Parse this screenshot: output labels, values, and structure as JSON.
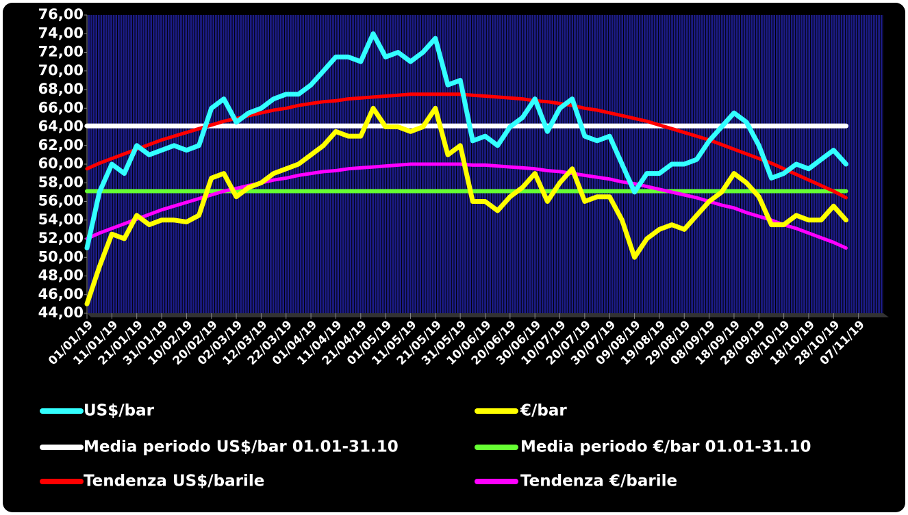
{
  "chart_data": {
    "type": "line",
    "x": [
      "01/01/19",
      "06/01/19",
      "11/01/19",
      "16/01/19",
      "21/01/19",
      "26/01/19",
      "31/01/19",
      "05/02/19",
      "10/02/19",
      "15/02/19",
      "20/02/19",
      "25/02/19",
      "02/03/19",
      "07/03/19",
      "12/03/19",
      "17/03/19",
      "22/03/19",
      "27/03/19",
      "01/04/19",
      "06/04/19",
      "11/04/19",
      "16/04/19",
      "21/04/19",
      "26/04/19",
      "01/05/19",
      "06/05/19",
      "11/05/19",
      "16/05/19",
      "21/05/19",
      "26/05/19",
      "31/05/19",
      "05/06/19",
      "10/06/19",
      "15/06/19",
      "20/06/19",
      "25/06/19",
      "30/06/19",
      "05/07/19",
      "10/07/19",
      "15/07/19",
      "20/07/19",
      "25/07/19",
      "30/07/19",
      "04/08/19",
      "09/08/19",
      "14/08/19",
      "19/08/19",
      "24/08/19",
      "29/08/19",
      "03/09/19",
      "08/09/19",
      "13/09/19",
      "18/09/19",
      "23/09/19",
      "28/09/19",
      "03/10/19",
      "08/10/19",
      "13/10/19",
      "18/10/19",
      "23/10/19",
      "28/10/19",
      "02/11/19"
    ],
    "series": [
      {
        "name": "US$/bar",
        "color": "#33ffff",
        "values": [
          51,
          57,
          60,
          59,
          62,
          61,
          61.5,
          62,
          61.5,
          62,
          66,
          67,
          64.5,
          65.5,
          66,
          67,
          67.5,
          67.5,
          68.5,
          70,
          71.5,
          71.5,
          71,
          74,
          71.5,
          72,
          71,
          72,
          73.5,
          68.5,
          69,
          62.5,
          63,
          62,
          64,
          65,
          67,
          63.5,
          66,
          67,
          63,
          62.5,
          63,
          60,
          57,
          59,
          59,
          60,
          60,
          60.5,
          62.5,
          64,
          65.5,
          64.5,
          62,
          58.5,
          59,
          60,
          59.5,
          60.5,
          61.5,
          60
        ]
      },
      {
        "name": "€/bar",
        "color": "#ffff00",
        "values": [
          45,
          49,
          52.5,
          52,
          54.5,
          53.5,
          54,
          54,
          53.8,
          54.5,
          58.5,
          59,
          56.5,
          57.5,
          58,
          59,
          59.5,
          60,
          61,
          62,
          63.5,
          63,
          63,
          66,
          64,
          64,
          63.5,
          64,
          66,
          61,
          62,
          56,
          56,
          55,
          56.5,
          57.5,
          59,
          56,
          58,
          59.5,
          56,
          56.5,
          56.5,
          54,
          50,
          52,
          53,
          53.5,
          53,
          54.5,
          56,
          57,
          59,
          58,
          56.5,
          53.5,
          53.5,
          54.5,
          54,
          54,
          55.5,
          54
        ]
      },
      {
        "name": "Media periodo US$/bar 01.01-31.10",
        "color": "#ffffff",
        "values": [
          64.1,
          64.1,
          64.1,
          64.1,
          64.1,
          64.1,
          64.1,
          64.1,
          64.1,
          64.1,
          64.1,
          64.1,
          64.1,
          64.1,
          64.1,
          64.1,
          64.1,
          64.1,
          64.1,
          64.1,
          64.1,
          64.1,
          64.1,
          64.1,
          64.1,
          64.1,
          64.1,
          64.1,
          64.1,
          64.1,
          64.1,
          64.1,
          64.1,
          64.1,
          64.1,
          64.1,
          64.1,
          64.1,
          64.1,
          64.1,
          64.1,
          64.1,
          64.1,
          64.1,
          64.1,
          64.1,
          64.1,
          64.1,
          64.1,
          64.1,
          64.1,
          64.1,
          64.1,
          64.1,
          64.1,
          64.1,
          64.1,
          64.1,
          64.1,
          64.1,
          64.1,
          64.1
        ]
      },
      {
        "name": "Media periodo €/bar 01.01-31.10",
        "color": "#66ff33",
        "values": [
          57.1,
          57.1,
          57.1,
          57.1,
          57.1,
          57.1,
          57.1,
          57.1,
          57.1,
          57.1,
          57.1,
          57.1,
          57.1,
          57.1,
          57.1,
          57.1,
          57.1,
          57.1,
          57.1,
          57.1,
          57.1,
          57.1,
          57.1,
          57.1,
          57.1,
          57.1,
          57.1,
          57.1,
          57.1,
          57.1,
          57.1,
          57.1,
          57.1,
          57.1,
          57.1,
          57.1,
          57.1,
          57.1,
          57.1,
          57.1,
          57.1,
          57.1,
          57.1,
          57.1,
          57.1,
          57.1,
          57.1,
          57.1,
          57.1,
          57.1,
          57.1,
          57.1,
          57.1,
          57.1,
          57.1,
          57.1,
          57.1,
          57.1,
          57.1,
          57.1,
          57.1,
          57.1
        ]
      },
      {
        "name": "Tendenza US$/barile",
        "color": "#ff0000",
        "values": [
          59.5,
          60.1,
          60.6,
          61.1,
          61.6,
          62.1,
          62.6,
          63.0,
          63.4,
          63.8,
          64.2,
          64.6,
          64.9,
          65.2,
          65.5,
          65.8,
          66.0,
          66.3,
          66.5,
          66.7,
          66.8,
          67.0,
          67.1,
          67.2,
          67.3,
          67.4,
          67.5,
          67.5,
          67.5,
          67.5,
          67.5,
          67.4,
          67.3,
          67.2,
          67.1,
          67.0,
          66.8,
          66.7,
          66.5,
          66.3,
          66.0,
          65.8,
          65.5,
          65.2,
          64.9,
          64.6,
          64.2,
          63.8,
          63.4,
          63.0,
          62.6,
          62.1,
          61.6,
          61.1,
          60.6,
          60.1,
          59.5,
          58.9,
          58.3,
          57.7,
          57.1,
          56.4
        ]
      },
      {
        "name": "Tendenza €/barile",
        "color": "#ff00ff",
        "values": [
          52.0,
          52.6,
          53.1,
          53.6,
          54.1,
          54.6,
          55.1,
          55.5,
          55.9,
          56.3,
          56.7,
          57.1,
          57.4,
          57.7,
          58.0,
          58.3,
          58.5,
          58.8,
          59.0,
          59.2,
          59.3,
          59.5,
          59.6,
          59.7,
          59.8,
          59.9,
          60.0,
          60.0,
          60.0,
          60.0,
          60.0,
          59.9,
          59.9,
          59.8,
          59.7,
          59.6,
          59.5,
          59.3,
          59.2,
          59.0,
          58.8,
          58.6,
          58.4,
          58.1,
          57.9,
          57.6,
          57.3,
          57.0,
          56.7,
          56.4,
          56.0,
          55.6,
          55.3,
          54.8,
          54.4,
          54.0,
          53.5,
          53.1,
          52.6,
          52.1,
          51.6,
          51.0
        ]
      }
    ],
    "xlim": [
      "01/01/19",
      "17/11/19"
    ],
    "xticks": [
      "01/01/19",
      "11/01/19",
      "21/01/19",
      "31/01/19",
      "10/02/19",
      "20/02/19",
      "02/03/19",
      "12/03/19",
      "22/03/19",
      "01/04/19",
      "11/04/19",
      "21/04/19",
      "01/05/19",
      "11/05/19",
      "21/05/19",
      "31/05/19",
      "10/06/19",
      "20/06/19",
      "30/06/19",
      "10/07/19",
      "20/07/19",
      "30/07/19",
      "09/08/19",
      "19/08/19",
      "29/08/19",
      "08/09/19",
      "18/09/19",
      "28/09/19",
      "08/10/19",
      "18/10/19",
      "28/10/19",
      "07/11/19"
    ],
    "ylim": [
      44,
      76
    ],
    "yticks": [
      {
        "value": 44,
        "label": "44,00"
      },
      {
        "value": 46,
        "label": "46,00"
      },
      {
        "value": 48,
        "label": "48,00"
      },
      {
        "value": 50,
        "label": "50,00"
      },
      {
        "value": 52,
        "label": "52,00"
      },
      {
        "value": 54,
        "label": "54,00"
      },
      {
        "value": 56,
        "label": "56,00"
      },
      {
        "value": 58,
        "label": "58,00"
      },
      {
        "value": 60,
        "label": "60,00"
      },
      {
        "value": 62,
        "label": "62,00"
      },
      {
        "value": 64,
        "label": "64,00"
      },
      {
        "value": 66,
        "label": "66,00"
      },
      {
        "value": 68,
        "label": "68,00"
      },
      {
        "value": 70,
        "label": "70,00"
      },
      {
        "value": 72,
        "label": "72,00"
      },
      {
        "value": 74,
        "label": "74,00"
      },
      {
        "value": 76,
        "label": "76,00"
      }
    ],
    "legend": "bottom"
  }
}
